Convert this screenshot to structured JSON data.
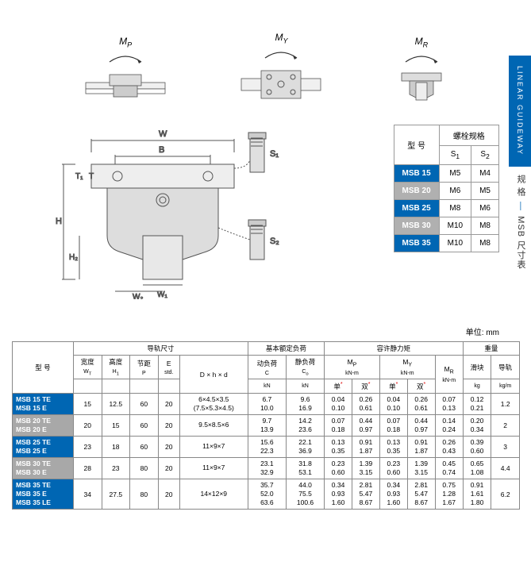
{
  "sidebar": {
    "tab": "LINEAR GUIDEWAY",
    "text1": "规 格",
    "text2": "MSB 尺寸表"
  },
  "diagrams": {
    "mp": "M",
    "mp_sub": "P",
    "my": "M",
    "my_sub": "Y",
    "mr": "M",
    "mr_sub": "R"
  },
  "bolt": {
    "hdr_model": "型 号",
    "hdr_spec": "螺栓规格",
    "s1": "S",
    "s1_sub": "1",
    "s2": "S",
    "s2_sub": "2",
    "rows": [
      {
        "model": "MSB 15",
        "s1": "M5",
        "s2": "M4",
        "c": "blue"
      },
      {
        "model": "MSB 20",
        "s1": "M6",
        "s2": "M5",
        "c": "gray"
      },
      {
        "model": "MSB 25",
        "s1": "M8",
        "s2": "M6",
        "c": "blue"
      },
      {
        "model": "MSB 30",
        "s1": "M10",
        "s2": "M8",
        "c": "gray"
      },
      {
        "model": "MSB 35",
        "s1": "M10",
        "s2": "M8",
        "c": "blue"
      }
    ]
  },
  "unit": "单位: mm",
  "main": {
    "hdr": {
      "model": "型 号",
      "rail": "导轨尺寸",
      "load": "基本额定负荷",
      "moment": "容许静力矩",
      "weight": "重量",
      "wt": "宽度",
      "wt_sub": "W",
      "wt_sub2": "T",
      "ht": "高度",
      "ht_sub": "H",
      "ht_sub2": "1",
      "pitch": "节距",
      "pitch_sub": "P",
      "e": "E",
      "e_sub": "std.",
      "dhd": "D × h × d",
      "dyn": "动负荷",
      "dyn_sub": "C",
      "dyn_u": "kN",
      "stat": "静负荷",
      "stat_sub": "C",
      "stat_sub2": "o",
      "stat_u": "kN",
      "mp": "M",
      "mp_sub": "P",
      "mp_u": "kN-m",
      "my": "M",
      "my_sub": "Y",
      "my_u": "kN-m",
      "mr": "M",
      "mr_sub": "R",
      "mr_u": "kN-m",
      "single": "单",
      "double": "双",
      "star": "*",
      "block": "滑块",
      "block_u": "kg",
      "rail_w": "导轨",
      "rail_u": "kg/m"
    },
    "rows": [
      {
        "c": "blue",
        "models": [
          "MSB 15 TE",
          "MSB 15 E"
        ],
        "wt": "15",
        "ht": "12.5",
        "p": "60",
        "e": "20",
        "dhd": [
          "6×4.5×3.5",
          "(7.5×5.3×4.5)"
        ],
        "c_": [
          "6.7",
          "10.0"
        ],
        "co": [
          "9.6",
          "16.9"
        ],
        "mps": [
          "0.04",
          "0.10"
        ],
        "mpd": [
          "0.26",
          "0.61"
        ],
        "mys": [
          "0.04",
          "0.10"
        ],
        "myd": [
          "0.26",
          "0.61"
        ],
        "mr": [
          "0.07",
          "0.13"
        ],
        "blk": [
          "0.12",
          "0.21"
        ],
        "rail": "1.2"
      },
      {
        "c": "gray",
        "models": [
          "MSB 20 TE",
          "MSB 20 E"
        ],
        "wt": "20",
        "ht": "15",
        "p": "60",
        "e": "20",
        "dhd": [
          "9.5×8.5×6"
        ],
        "c_": [
          "9.7",
          "13.9"
        ],
        "co": [
          "14.2",
          "23.6"
        ],
        "mps": [
          "0.07",
          "0.18"
        ],
        "mpd": [
          "0.44",
          "0.97"
        ],
        "mys": [
          "0.07",
          "0.18"
        ],
        "myd": [
          "0.44",
          "0.97"
        ],
        "mr": [
          "0.14",
          "0.24"
        ],
        "blk": [
          "0.20",
          "0.34"
        ],
        "rail": "2"
      },
      {
        "c": "blue",
        "models": [
          "MSB 25 TE",
          "MSB 25 E"
        ],
        "wt": "23",
        "ht": "18",
        "p": "60",
        "e": "20",
        "dhd": [
          "11×9×7"
        ],
        "c_": [
          "15.6",
          "22.3"
        ],
        "co": [
          "22.1",
          "36.9"
        ],
        "mps": [
          "0.13",
          "0.35"
        ],
        "mpd": [
          "0.91",
          "1.87"
        ],
        "mys": [
          "0.13",
          "0.35"
        ],
        "myd": [
          "0.91",
          "1.87"
        ],
        "mr": [
          "0.26",
          "0.43"
        ],
        "blk": [
          "0.39",
          "0.60"
        ],
        "rail": "3"
      },
      {
        "c": "gray",
        "models": [
          "MSB 30 TE",
          "MSB 30 E"
        ],
        "wt": "28",
        "ht": "23",
        "p": "80",
        "e": "20",
        "dhd": [
          "11×9×7"
        ],
        "c_": [
          "23.1",
          "32.9"
        ],
        "co": [
          "31.8",
          "53.1"
        ],
        "mps": [
          "0.23",
          "0.60"
        ],
        "mpd": [
          "1.39",
          "3.15"
        ],
        "mys": [
          "0.23",
          "0.60"
        ],
        "myd": [
          "1.39",
          "3.15"
        ],
        "mr": [
          "0.45",
          "0.74"
        ],
        "blk": [
          "0.65",
          "1.08"
        ],
        "rail": "4.4"
      },
      {
        "c": "blue",
        "models": [
          "MSB 35 TE",
          "MSB 35 E",
          "MSB 35 LE"
        ],
        "wt": "34",
        "ht": "27.5",
        "p": "80",
        "e": "20",
        "dhd": [
          "14×12×9"
        ],
        "c_": [
          "35.7",
          "52.0",
          "63.6"
        ],
        "co": [
          "44.0",
          "75.5",
          "100.6"
        ],
        "mps": [
          "0.34",
          "0.93",
          "1.60"
        ],
        "mpd": [
          "2.81",
          "5.47",
          "8.67"
        ],
        "mys": [
          "0.34",
          "0.93",
          "1.60"
        ],
        "myd": [
          "2.81",
          "5.47",
          "8.67"
        ],
        "mr": [
          "0.75",
          "1.28",
          "1.67"
        ],
        "blk": [
          "0.91",
          "1.61",
          "1.80"
        ],
        "rail": "6.2"
      }
    ]
  },
  "colors": {
    "blue": "#0066b3",
    "gray": "#a8a8a8"
  }
}
